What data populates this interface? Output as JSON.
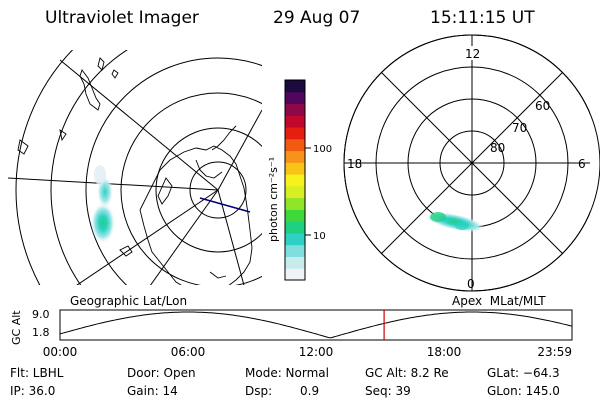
{
  "header": {
    "instrument": "Ultraviolet Imager",
    "date": "29 Aug 07",
    "time": "15:11:15 UT"
  },
  "left_panel": {
    "caption": "Geographic Lat/Lon"
  },
  "right_panel": {
    "caption": "Apex  MLat/MLT",
    "mlt_labels": {
      "top": "12",
      "left": "18",
      "right": "6",
      "bottom": "0"
    },
    "lat_labels": [
      "60",
      "70",
      "80"
    ]
  },
  "colorbar": {
    "unit_label": "photon cm⁻²s⁻¹",
    "ticks": [
      "100",
      "10"
    ],
    "colors": [
      "#eef3f6",
      "#c8ecec",
      "#7fdede",
      "#2ed1c4",
      "#1fcf82",
      "#3fd83a",
      "#8fe52a",
      "#d6ee22",
      "#f7f21e",
      "#f8c415",
      "#f7931a",
      "#f25a12",
      "#e51f10",
      "#c2082a",
      "#8e0746",
      "#52055e",
      "#1a0a3e"
    ]
  },
  "timeline": {
    "ylabel": "GC Alt",
    "y_top": "9.0",
    "y_bottom": "1.8",
    "x_ticks": [
      "00:00",
      "06:00",
      "12:00",
      "18:00",
      "23:59"
    ],
    "marker_time": "15:11"
  },
  "info": {
    "filter": "Flt: LBHL",
    "ip": "IP: 36.0",
    "door": "Door: Open",
    "gain": "Gain: 14",
    "mode": "Mode: Normal",
    "dsp_label": "Dsp:",
    "dsp_value": "0.9",
    "gc_alt": "GC Alt: 8.2 Re",
    "seq": "Seq: 39",
    "glat": "GLat: −64.3",
    "glon": "GLon: 145.0"
  },
  "colors": {
    "marker": "#cc0000",
    "satellite_track": "#000080"
  }
}
